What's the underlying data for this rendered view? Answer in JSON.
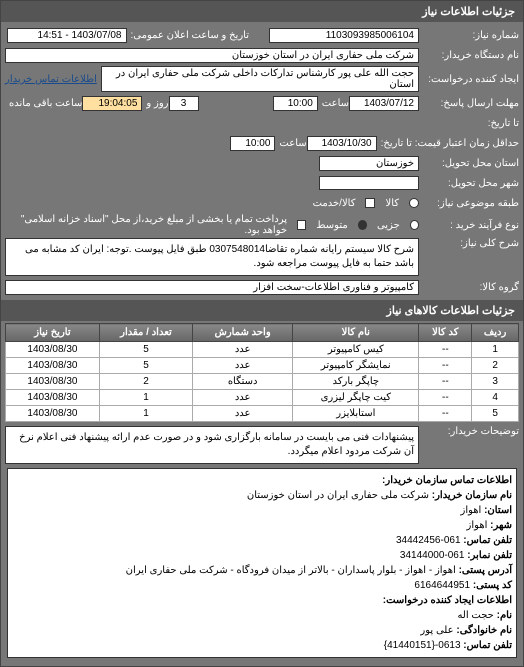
{
  "panel": {
    "title": "جزئیات اطلاعات نیاز"
  },
  "header": {
    "need_number_label": "شماره نیاز:",
    "need_number": "1103093985006104",
    "announce_label": "تاریخ و ساعت اعلان عمومی:",
    "announce_value": "1403/07/08 - 14:51",
    "buyer_device_label": "نام دستگاه خریدار:",
    "buyer_device": "شرکت ملی حفاری ایران در استان خوزستان",
    "creator_label": "ایجاد کننده درخواست:",
    "creator": "حجت الله علی پور کارشناس تدارکات داخلی شرکت ملی حفاری ایران در استان",
    "contact_link": "اطلاعات تماس خریدار",
    "deadline_label": "مهلت ارسال پاسخ:",
    "deadline_date": "1403/07/12",
    "time_label": "ساعت",
    "deadline_time": "10:00",
    "days_label": "روز و",
    "days": "3",
    "remain_label": "ساعت باقی مانده",
    "remain": "19:04:05",
    "until_label": "تا تاریخ:",
    "validity_label": "حداقل زمان اعتبار قیمت: تا تاریخ:",
    "validity_date": "1403/10/30",
    "validity_time": "10:00",
    "province_label": "استان محل تحویل:",
    "province": "خوزستان",
    "city_label": "شهر محل تحویل:",
    "importance_label": "طبقه موضوعی نیاز:",
    "importance_opts": [
      "کالا",
      "کالا/خدمت"
    ],
    "process_label": "نوع فرآیند خرید :",
    "process_opts": [
      "جزیی",
      "متوسط"
    ],
    "process_note": "پرداخت تمام یا بخشی از مبلغ خرید،از محل \"اسناد خزانه اسلامی\" خواهد بود."
  },
  "desc": {
    "label": "شرح کلی نیاز:",
    "text": "شرح کالا سیستم رایانه شماره تقاضا0307548014 طبق فایل پیوست .توجه: ایران کد مشابه می باشد حتما به فایل پیوست مراجعه شود."
  },
  "group": {
    "label": "گروه کالا:",
    "text": "کامپیوتر و فناوری اطلاعات-سخت افزار"
  },
  "table": {
    "title": "جزئیات اطلاعات کالاهای نیاز",
    "columns": [
      "ردیف",
      "کد کالا",
      "نام کالا",
      "واحد شمارش",
      "تعداد / مقدار",
      "تاریخ نیاز"
    ],
    "rows": [
      [
        "1",
        "--",
        "کیس کامپیوتر",
        "عدد",
        "5",
        "1403/08/30"
      ],
      [
        "2",
        "--",
        "نمایشگر کامپیوتر",
        "عدد",
        "5",
        "1403/08/30"
      ],
      [
        "3",
        "--",
        "چاپگر بارکد",
        "دستگاه",
        "2",
        "1403/08/30"
      ],
      [
        "4",
        "--",
        "کیت چاپگر لیزری",
        "عدد",
        "1",
        "1403/08/30"
      ],
      [
        "5",
        "--",
        "استابلایزر",
        "عدد",
        "1",
        "1403/08/30"
      ]
    ]
  },
  "notes": {
    "label": "توضیحات خریدار:",
    "text": "پیشنهادات فنی می بایست در سامانه بارگزاری شود و در صورت عدم ارائه پیشنهاد فنی اعلام نرخ آن شرکت مردود اعلام میگردد."
  },
  "contact": {
    "title": "اطلاعات تماس سازمان خریدار:",
    "org_label": "نام سازمان خریدار:",
    "org": "شرکت ملی حفاری ایران در استان خوزستان",
    "province_label": "استان:",
    "province": "اهواز",
    "city_label": "شهر:",
    "city": "اهواز",
    "phone_label": "تلفن تماس:",
    "phone": "061-34442456",
    "fax_label": "تلفن نمابر:",
    "fax": "061-34144000",
    "address_label": "آدرس پستی:",
    "address": "اهواز - اهواز - بلوار پاسداران - بالاتر از میدان فرودگاه - شرکت ملی حفاری ایران",
    "office_label": "کد پستی:",
    "office": "6164644951",
    "creator_title": "اطلاعات ایجاد کننده درخواست:",
    "name_label": "نام:",
    "name": "حجت اله",
    "lname_label": "نام خانوادگی:",
    "lname": "علی پور",
    "cphone_label": "تلفن تماس:",
    "cphone": "0613-{41440151}"
  }
}
